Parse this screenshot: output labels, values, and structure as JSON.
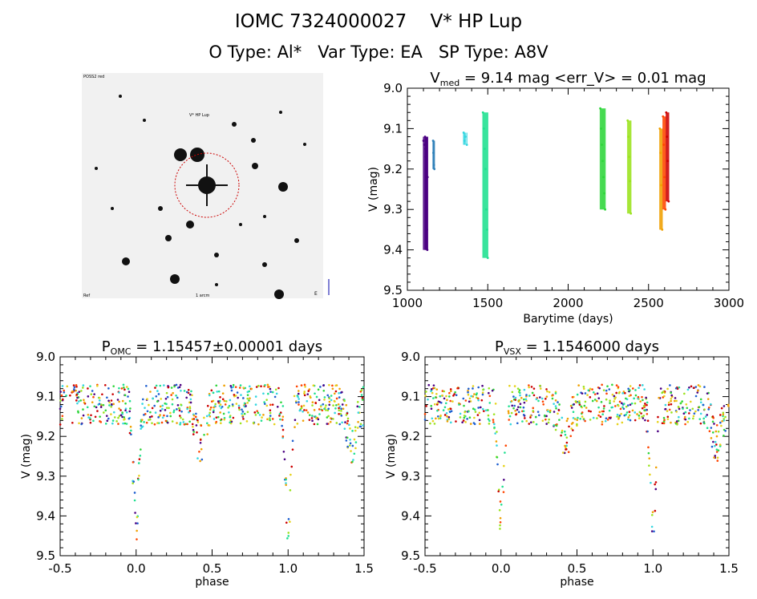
{
  "header": {
    "title_line1": "IOMC 7324000027    V* HP Lup",
    "title_line2": "O Type: Al*   Var Type: EA   SP Type: A8V"
  },
  "finder": {
    "corner_tl": "POSS2 red",
    "target_label": "V* HP Lup",
    "corner_bl": "Ref",
    "corner_bc": "1 arcm",
    "corner_br": "E"
  },
  "chart_data": [
    {
      "type": "scatter",
      "title_parts": [
        "V",
        "med",
        " = 9.14 mag <err_V> = 0.01 mag"
      ],
      "xlabel": "Barytime (days)",
      "ylabel": "V (mag)",
      "xlim": [
        1000,
        3000
      ],
      "ylim": [
        9.5,
        9.0
      ],
      "x_ticks": [
        "1000",
        "1500",
        "2000",
        "2500",
        "3000"
      ],
      "y_ticks": [
        "9.0",
        "9.1",
        "9.2",
        "9.3",
        "9.4",
        "9.5"
      ],
      "series": [
        {
          "color": "#4b0082",
          "x": [
            1100,
            1105,
            1110,
            1112,
            1114,
            1116,
            1118,
            1120,
            1122,
            1124,
            1126
          ],
          "v": [
            9.13,
            9.14,
            9.12,
            9.15,
            9.17,
            9.2,
            9.25,
            9.3,
            9.35,
            9.4,
            9.22
          ]
        },
        {
          "color": "#2c7fb8",
          "x": [
            1160,
            1162,
            1165,
            1168
          ],
          "v": [
            9.13,
            9.16,
            9.19,
            9.2
          ]
        },
        {
          "color": "#33d6e0",
          "x": [
            1350,
            1355,
            1360,
            1370
          ],
          "v": [
            9.11,
            9.13,
            9.12,
            9.14
          ]
        },
        {
          "color": "#1fe090",
          "x": [
            1470,
            1475,
            1480,
            1485,
            1490,
            1495,
            1500
          ],
          "v": [
            9.06,
            9.1,
            9.15,
            9.2,
            9.3,
            9.35,
            9.42
          ]
        },
        {
          "color": "#2ed63a",
          "x": [
            2200,
            2205,
            2210,
            2215,
            2220,
            2225,
            2230
          ],
          "v": [
            9.05,
            9.1,
            9.14,
            9.18,
            9.22,
            9.26,
            9.3
          ]
        },
        {
          "color": "#9be31e",
          "x": [
            2370,
            2375,
            2380,
            2385,
            2390
          ],
          "v": [
            9.08,
            9.12,
            9.17,
            9.23,
            9.31
          ]
        },
        {
          "color": "#f0a000",
          "x": [
            2570,
            2575,
            2580,
            2585
          ],
          "v": [
            9.1,
            9.16,
            9.24,
            9.35
          ]
        },
        {
          "color": "#ff4500",
          "x": [
            2590,
            2595,
            2600,
            2605
          ],
          "v": [
            9.07,
            9.14,
            9.22,
            9.3
          ]
        },
        {
          "color": "#cc0000",
          "x": [
            2610,
            2615,
            2620,
            2625
          ],
          "v": [
            9.06,
            9.12,
            9.18,
            9.28
          ]
        }
      ]
    },
    {
      "type": "scatter",
      "title_parts": [
        "P",
        "OMC",
        " = 1.15457±0.00001 days"
      ],
      "xlabel": "phase",
      "ylabel": "V (mag)",
      "xlim": [
        -0.5,
        1.5
      ],
      "ylim": [
        9.5,
        9.0
      ],
      "x_ticks": [
        "-0.5",
        "0.0",
        "0.5",
        "1.0",
        "1.5"
      ],
      "y_ticks": [
        "9.0",
        "9.1",
        "9.2",
        "9.3",
        "9.4",
        "9.5"
      ],
      "light_curve": {
        "period_unit": "phase",
        "max_mag": 9.12,
        "primary_min_phase": 0.0,
        "primary_min_mag": 9.42,
        "secondary_min_phase": 0.42,
        "secondary_min_mag": 9.22
      }
    },
    {
      "type": "scatter",
      "title_parts": [
        "P",
        "VSX",
        " = 1.1546000 days"
      ],
      "xlabel": "phase",
      "ylabel": "V (mag)",
      "xlim": [
        -0.5,
        1.5
      ],
      "ylim": [
        9.5,
        9.0
      ],
      "x_ticks": [
        "-0.5",
        "0.0",
        "0.5",
        "1.0",
        "1.5"
      ],
      "y_ticks": [
        "9.0",
        "9.1",
        "9.2",
        "9.3",
        "9.4",
        "9.5"
      ],
      "light_curve": {
        "period_unit": "phase",
        "max_mag": 9.12,
        "primary_min_phase": 0.0,
        "primary_min_mag": 9.42,
        "secondary_min_phase": 0.42,
        "secondary_min_mag": 9.22
      }
    }
  ],
  "colors": {
    "palette": [
      "#4b0082",
      "#1e5fd0",
      "#33d6e0",
      "#1fe090",
      "#2ed63a",
      "#9be31e",
      "#e6d21a",
      "#f0a000",
      "#ff4500",
      "#cc0000"
    ],
    "finder_circle": "#cc0000"
  }
}
